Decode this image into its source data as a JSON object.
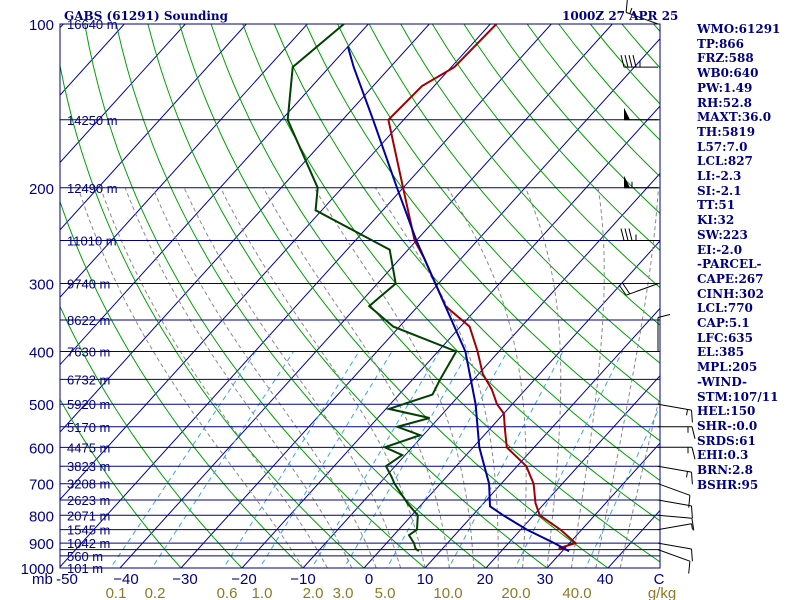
{
  "title": "GABS (61291) Sounding",
  "timestamp": "1000Z 27 APR 25",
  "chart_data": {
    "type": "skew-t",
    "pressure_levels": [
      100,
      200,
      300,
      400,
      500,
      600,
      700,
      800,
      900,
      1000
    ],
    "pressure_labels": [
      "100",
      "200",
      "300",
      "400",
      "500",
      "600",
      "700",
      "800",
      "900",
      "1000"
    ],
    "pressure_unit_label": "mb",
    "temperature_ticks": [
      -50,
      -40,
      -30,
      -20,
      -10,
      0,
      10,
      20,
      30,
      40
    ],
    "temperature_tick_labels": [
      "-50",
      "−40",
      "−30",
      "−20",
      "−10",
      "0",
      "10",
      "20",
      "30",
      "40",
      "C"
    ],
    "mixing_ratio_ticks": [
      0.1,
      0.2,
      0.6,
      1.0,
      2.0,
      3.0,
      5.0,
      10.0,
      20.0,
      40.0
    ],
    "mixing_ratio_tick_labels": [
      "0.1",
      "0.2",
      "0.6",
      "1.0",
      "2.0",
      "3.0",
      "5.0",
      "10.0",
      "20.0",
      "40.0",
      "g/kg"
    ],
    "height_labels": [
      {
        "p": 100,
        "text": "16640 m"
      },
      {
        "p": 150,
        "text": "14250 m"
      },
      {
        "p": 200,
        "text": "12490 m"
      },
      {
        "p": 250,
        "text": "11010 m"
      },
      {
        "p": 300,
        "text": "9740 m"
      },
      {
        "p": 350,
        "text": "8622 m"
      },
      {
        "p": 400,
        "text": "7630 m"
      },
      {
        "p": 450,
        "text": "6732 m"
      },
      {
        "p": 500,
        "text": "5920 m"
      },
      {
        "p": 550,
        "text": "5170 m"
      },
      {
        "p": 600,
        "text": "4475 m"
      },
      {
        "p": 650,
        "text": "3823 m"
      },
      {
        "p": 700,
        "text": "3208 m"
      },
      {
        "p": 750,
        "text": "2623 m"
      },
      {
        "p": 800,
        "text": "2071 m"
      },
      {
        "p": 850,
        "text": "1545 m"
      },
      {
        "p": 900,
        "text": "1042 m"
      },
      {
        "p": 950,
        "text": "560 m"
      },
      {
        "p": 1000,
        "text": "101 m"
      }
    ],
    "series": [
      {
        "key": "temperature",
        "color": "#a00000",
        "points": [
          [
            931,
            31.1
          ],
          [
            926,
            30.5
          ],
          [
            920,
            29.0
          ],
          [
            900,
            31.0
          ],
          [
            850,
            26.5
          ],
          [
            800,
            21.0
          ],
          [
            760,
            18.5
          ],
          [
            700,
            15.3
          ],
          [
            650,
            11.5
          ],
          [
            600,
            5.5
          ],
          [
            560,
            2.8
          ],
          [
            520,
            0.0
          ],
          [
            500,
            -2.5
          ],
          [
            470,
            -5.5
          ],
          [
            440,
            -9.3
          ],
          [
            400,
            -13.5
          ],
          [
            360,
            -18.5
          ],
          [
            330,
            -25.5
          ],
          [
            300,
            -30.5
          ],
          [
            270,
            -36.0
          ],
          [
            250,
            -40.3
          ],
          [
            200,
            -50.0
          ],
          [
            150,
            -62.5
          ],
          [
            130,
            -62.0
          ],
          [
            120,
            -59.5
          ],
          [
            100,
            -59.0
          ]
        ]
      },
      {
        "key": "dewpoint",
        "color": "#004000",
        "points": [
          [
            931,
            6.5
          ],
          [
            926,
            6.0
          ],
          [
            920,
            5.5
          ],
          [
            900,
            4.5
          ],
          [
            870,
            2.5
          ],
          [
            850,
            3.0
          ],
          [
            800,
            1.0
          ],
          [
            760,
            -2.5
          ],
          [
            700,
            -7.5
          ],
          [
            680,
            -9.0
          ],
          [
            650,
            -11.5
          ],
          [
            620,
            -10.5
          ],
          [
            600,
            -14.5
          ],
          [
            570,
            -10.5
          ],
          [
            550,
            -15.5
          ],
          [
            530,
            -11.5
          ],
          [
            510,
            -19.5
          ],
          [
            480,
            -14.5
          ],
          [
            450,
            -15.5
          ],
          [
            400,
            -17.0
          ],
          [
            360,
            -31.0
          ],
          [
            330,
            -38.0
          ],
          [
            300,
            -37.0
          ],
          [
            260,
            -43.0
          ],
          [
            220,
            -61.0
          ],
          [
            200,
            -64.0
          ],
          [
            150,
            -79.0
          ],
          [
            120,
            -86.0
          ],
          [
            100,
            -84.0
          ]
        ]
      },
      {
        "key": "parcel",
        "color": "#0000a0",
        "points": [
          [
            931,
            31.1
          ],
          [
            900,
            27.5
          ],
          [
            850,
            21.0
          ],
          [
            800,
            15.0
          ],
          [
            770,
            11.5
          ],
          [
            700,
            8.0
          ],
          [
            600,
            1.0
          ],
          [
            500,
            -6.0
          ],
          [
            400,
            -15.5
          ],
          [
            300,
            -30.5
          ],
          [
            250,
            -40.0
          ],
          [
            200,
            -51.0
          ],
          [
            150,
            -65.0
          ],
          [
            120,
            -76.0
          ],
          [
            110,
            -80.0
          ]
        ]
      }
    ],
    "wind_barbs": [
      {
        "p": 925,
        "dir": 110,
        "spd": 10
      },
      {
        "p": 900,
        "dir": 100,
        "spd": 10
      },
      {
        "p": 850,
        "dir": 80,
        "spd": 5
      },
      {
        "p": 800,
        "dir": 95,
        "spd": 10
      },
      {
        "p": 750,
        "dir": 100,
        "spd": 10
      },
      {
        "p": 700,
        "dir": 110,
        "spd": 10
      },
      {
        "p": 650,
        "dir": 100,
        "spd": 15
      },
      {
        "p": 600,
        "dir": 90,
        "spd": 15
      },
      {
        "p": 550,
        "dir": 90,
        "spd": 15
      },
      {
        "p": 500,
        "dir": 100,
        "spd": 15
      },
      {
        "p": 400,
        "dir": 0,
        "spd": 10
      },
      {
        "p": 300,
        "dir": 250,
        "spd": 20
      },
      {
        "p": 250,
        "dir": 270,
        "spd": 35
      },
      {
        "p": 200,
        "dir": 270,
        "spd": 55
      },
      {
        "p": 150,
        "dir": 270,
        "spd": 50
      },
      {
        "p": 120,
        "dir": 270,
        "spd": 45
      },
      {
        "p": 100,
        "dir": 290,
        "spd": 15
      }
    ],
    "grid": true
  },
  "panel": [
    "WMO:61291",
    "TP:866",
    "FRZ:588",
    "WB0:640",
    "PW:1.49",
    "RH:52.8",
    "MAXT:36.0",
    "TH:5819",
    "L57:7.0",
    "LCL:827",
    "LI:-2.3",
    "SI:-2.1",
    "TT:51",
    "KI:32",
    "SW:223",
    "EI:-2.0",
    "-PARCEL-",
    "CAPE:267",
    "CINH:302",
    "LCL:770",
    "CAP:5.1",
    "LFC:635",
    "EL:385",
    "MPL:205",
    "-WIND-",
    "STM:107/11",
    "HEL:150",
    "SHR-:0.0",
    "SRDS:61",
    "EHI:0.3",
    "BRN:2.8",
    "BSHR:95"
  ]
}
